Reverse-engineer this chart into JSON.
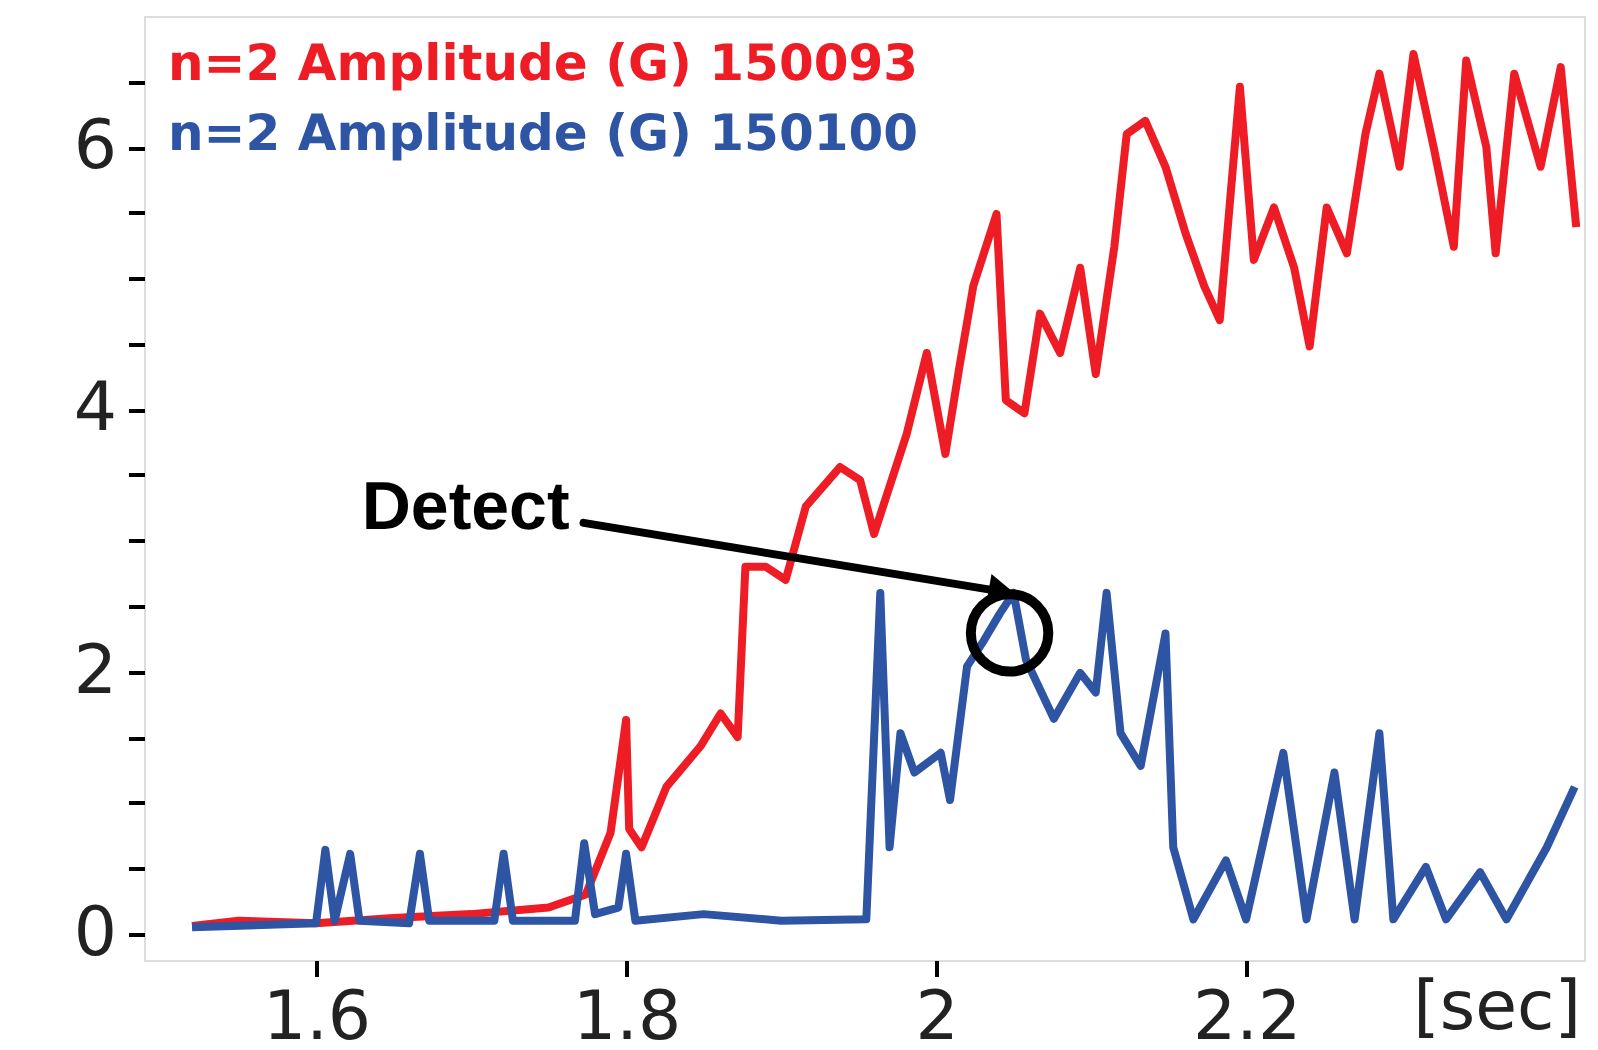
{
  "chart_data": {
    "type": "line",
    "xlabel": "[sec]",
    "xlim": [
      1.489,
      2.418
    ],
    "ylim": [
      -0.2,
      7
    ],
    "xticks": [
      1.6,
      1.8,
      2,
      2.2
    ],
    "yticks": [
      0,
      {
        "value": 0.5,
        "label": null
      },
      {
        "value": 1,
        "label": null
      },
      {
        "value": 1.5,
        "label": null
      },
      2,
      {
        "value": 2.5,
        "label": null
      },
      {
        "value": 3,
        "label": null
      },
      {
        "value": 3.5,
        "label": null
      },
      4,
      {
        "value": 4.5,
        "label": null
      },
      {
        "value": 5,
        "label": null
      },
      {
        "value": 5.5,
        "label": null
      },
      6,
      {
        "value": 6.5,
        "label": null
      }
    ],
    "grid": false,
    "legend": "top left",
    "line_style": "solid",
    "marker": "none",
    "annotations": [
      {
        "text": "Detect",
        "x": 2.05,
        "y": 2.6
      }
    ],
    "series": [
      {
        "name": "n=2 Amplitude (G) 150093",
        "color": "#ee1c25",
        "x": [
          1.52,
          1.55,
          1.6,
          1.65,
          1.7,
          1.75,
          1.774,
          1.79,
          1.8,
          1.802,
          1.81,
          1.826,
          1.848,
          1.861,
          1.872,
          1.877,
          1.89,
          1.903,
          1.916,
          1.938,
          1.951,
          1.96,
          1.981,
          1.994,
          2.006,
          2.015,
          2.024,
          2.039,
          2.045,
          2.057,
          2.067,
          2.08,
          2.093,
          2.103,
          2.115,
          2.123,
          2.135,
          2.148,
          2.161,
          2.173,
          2.183,
          2.196,
          2.205,
          2.218,
          2.231,
          2.241,
          2.252,
          2.265,
          2.277,
          2.286,
          2.299,
          2.308,
          2.321,
          2.334,
          2.342,
          2.355,
          2.361,
          2.373,
          2.39,
          2.403,
          2.413
        ],
        "values": [
          0.06,
          0.1,
          0.08,
          0.12,
          0.15,
          0.2,
          0.3,
          0.77,
          1.63,
          0.8,
          0.66,
          1.12,
          1.43,
          1.68,
          1.5,
          2.8,
          2.8,
          2.7,
          3.26,
          3.56,
          3.46,
          3.05,
          3.81,
          4.43,
          3.66,
          4.32,
          4.94,
          5.49,
          4.07,
          3.97,
          4.73,
          4.43,
          5.08,
          4.27,
          5.24,
          6.1,
          6.2,
          5.85,
          5.34,
          4.94,
          4.68,
          6.46,
          5.14,
          5.54,
          5.08,
          4.48,
          5.54,
          5.19,
          6.1,
          6.56,
          5.85,
          6.71,
          6.0,
          5.24,
          6.66,
          6.0,
          5.19,
          6.56,
          5.85,
          6.61,
          5.39
        ]
      },
      {
        "name": "n=2 Amplitude (G) 150100",
        "color": "#2e54a4",
        "x": [
          1.52,
          1.6,
          1.606,
          1.612,
          1.622,
          1.628,
          1.66,
          1.667,
          1.673,
          1.715,
          1.721,
          1.727,
          1.767,
          1.773,
          1.78,
          1.795,
          1.8,
          1.806,
          1.85,
          1.9,
          1.955,
          1.964,
          1.97,
          1.977,
          1.986,
          2.003,
          2.009,
          2.02,
          2.031,
          2.041,
          2.05,
          2.058,
          2.076,
          2.093,
          2.103,
          2.11,
          2.119,
          2.132,
          2.148,
          2.153,
          2.166,
          2.187,
          2.2,
          2.224,
          2.239,
          2.257,
          2.27,
          2.286,
          2.295,
          2.316,
          2.329,
          2.351,
          2.368,
          2.394,
          2.412
        ],
        "values": [
          0.05,
          0.08,
          0.64,
          0.1,
          0.61,
          0.1,
          0.08,
          0.61,
          0.1,
          0.1,
          0.61,
          0.1,
          0.1,
          0.69,
          0.15,
          0.2,
          0.61,
          0.1,
          0.15,
          0.1,
          0.11,
          2.6,
          0.66,
          1.53,
          1.23,
          1.38,
          1.02,
          2.04,
          2.24,
          2.44,
          2.6,
          2.09,
          1.64,
          1.99,
          1.84,
          2.6,
          1.53,
          1.28,
          2.29,
          0.66,
          0.11,
          0.56,
          0.11,
          1.38,
          0.11,
          1.23,
          0.11,
          1.53,
          0.11,
          0.51,
          0.11,
          0.47,
          0.11,
          0.66,
          1.12
        ]
      }
    ]
  }
}
